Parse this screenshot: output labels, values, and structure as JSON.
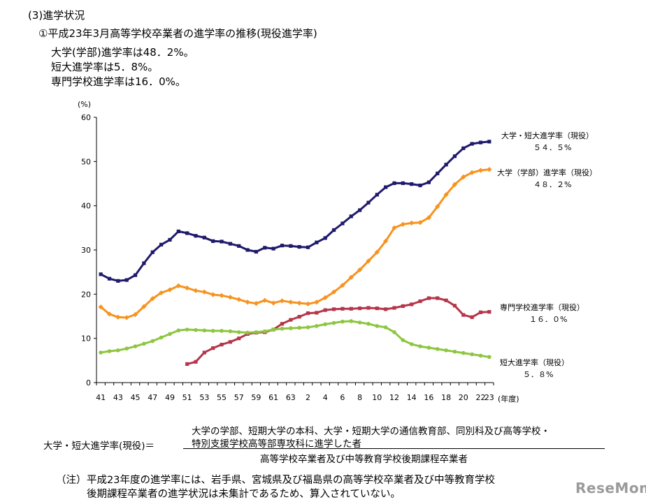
{
  "header": {
    "section": "(3)進学状況",
    "subtitle": "①平成23年3月高等学校卒業者の進学率の推移(現役進学率)",
    "facts": [
      "大学(学部)進学率は48．2%。",
      "短大進学率は5．8%。",
      "専門学校進学率は16．0%。"
    ]
  },
  "chart_data": {
    "type": "line",
    "ylabel": "(%)",
    "ylim": [
      0,
      60
    ],
    "yticks": [
      0,
      10,
      20,
      30,
      40,
      50,
      60
    ],
    "xticks": [
      "41",
      "43",
      "45",
      "47",
      "49",
      "51",
      "53",
      "55",
      "57",
      "59",
      "61",
      "63",
      "2",
      "4",
      "6",
      "8",
      "10",
      "12",
      "14",
      "16",
      "18",
      "20",
      "22",
      "23"
    ],
    "xunit": "(年度)",
    "x": [
      "41",
      "42",
      "43",
      "44",
      "45",
      "46",
      "47",
      "48",
      "49",
      "50",
      "51",
      "52",
      "53",
      "54",
      "55",
      "56",
      "57",
      "58",
      "59",
      "60",
      "61",
      "62",
      "63",
      "元",
      "2",
      "3",
      "4",
      "5",
      "6",
      "7",
      "8",
      "9",
      "10",
      "11",
      "12",
      "13",
      "14",
      "15",
      "16",
      "17",
      "18",
      "19",
      "20",
      "21",
      "22",
      "23"
    ],
    "series": [
      {
        "name": "大学・短大進学率（現役）",
        "final_label": "５４．５%",
        "color": "#1f1a6b",
        "marker": "square",
        "values": [
          24.5,
          23.5,
          23.0,
          23.2,
          24.3,
          27.0,
          29.5,
          31.2,
          32.3,
          34.2,
          33.8,
          33.2,
          32.8,
          32.0,
          31.9,
          31.4,
          30.9,
          30.0,
          29.6,
          30.5,
          30.3,
          31.0,
          30.9,
          30.7,
          30.6,
          31.7,
          32.7,
          34.5,
          36.0,
          37.6,
          39.0,
          40.7,
          42.5,
          44.2,
          45.1,
          45.1,
          44.9,
          44.6,
          45.3,
          47.3,
          49.3,
          51.2,
          53.0,
          54.0,
          54.3,
          54.5
        ]
      },
      {
        "name": "大学（学部）進学率（現役）",
        "final_label": "４８．２%",
        "color": "#f7931e",
        "marker": "diamond",
        "values": [
          17.1,
          15.5,
          14.8,
          14.7,
          15.4,
          17.2,
          19.0,
          20.3,
          21.0,
          21.9,
          21.4,
          20.8,
          20.5,
          19.9,
          19.7,
          19.3,
          18.8,
          18.2,
          17.9,
          18.6,
          18.0,
          18.5,
          18.2,
          18.0,
          17.8,
          18.2,
          19.2,
          20.5,
          22.0,
          23.8,
          25.5,
          27.5,
          29.5,
          32.0,
          35.0,
          35.8,
          36.1,
          36.2,
          37.3,
          39.8,
          42.5,
          44.8,
          46.5,
          47.5,
          48.0,
          48.2
        ]
      },
      {
        "name": "専門学校進学率（現役）",
        "final_label": "１６．０%",
        "color": "#b5364a",
        "marker": "square",
        "values": [
          null,
          null,
          null,
          null,
          null,
          null,
          null,
          null,
          null,
          null,
          4.2,
          4.7,
          6.8,
          7.8,
          8.6,
          9.2,
          10.0,
          11.0,
          11.3,
          11.4,
          12.0,
          13.3,
          14.2,
          14.9,
          15.7,
          15.8,
          16.4,
          16.6,
          16.7,
          16.7,
          16.8,
          16.9,
          16.8,
          16.6,
          16.9,
          17.3,
          17.7,
          18.4,
          19.1,
          19.1,
          18.6,
          17.4,
          15.3,
          14.8,
          15.9,
          16.0
        ]
      },
      {
        "name": "短大進学率（現役）",
        "final_label": "５．８%",
        "color": "#8dc63f",
        "marker": "circle",
        "values": [
          6.8,
          7.1,
          7.3,
          7.7,
          8.2,
          8.8,
          9.4,
          10.2,
          11.0,
          11.8,
          12.0,
          11.9,
          11.8,
          11.7,
          11.7,
          11.6,
          11.4,
          11.3,
          11.4,
          11.6,
          12.0,
          12.2,
          12.3,
          12.4,
          12.5,
          12.8,
          13.2,
          13.5,
          13.8,
          13.9,
          13.6,
          13.3,
          12.8,
          12.5,
          11.4,
          9.6,
          8.7,
          8.2,
          7.9,
          7.6,
          7.3,
          7.0,
          6.7,
          6.4,
          6.1,
          5.8
        ]
      }
    ]
  },
  "formula": {
    "left": "大学・短大進学率(現役)＝",
    "numerator_line1": "大学の学部、短期大学の本科、大学・短期大学の通信教育部、同別科及び高等学校・",
    "numerator_line2": "特別支援学校高等部専攻科に進学した者",
    "denominator": "高等学校卒業者及び中等教育学校後期課程卒業者"
  },
  "note": {
    "label": "（注）",
    "line1": "平成23年度の進学率には、岩手県、宮城県及び福島県の高等学校卒業者及び中等教育学校",
    "line2": "後期課程卒業者の進学状況は未集計であるため、算入されていない。"
  },
  "logo": {
    "text": "ReseMom"
  }
}
